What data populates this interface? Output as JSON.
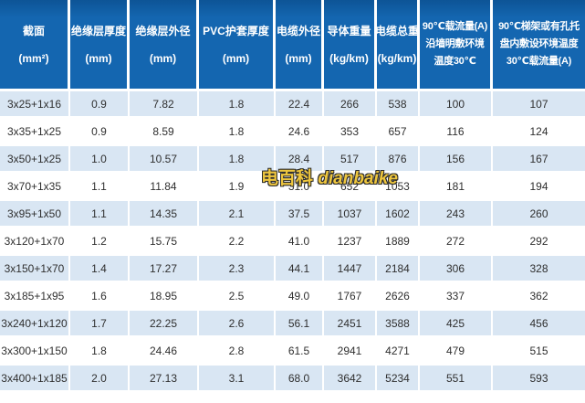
{
  "colors": {
    "header_bg": "#1466b0",
    "header_bg_dark": "#0d5496",
    "row_alt_bg": "#d9e6f3",
    "row_bg": "#ffffff",
    "grid_line": "#ffffff",
    "body_text": "#2f2f2f",
    "header_text": "#ffffff",
    "watermark_color": "#eec63e",
    "watermark_outline": "#2b2b2b"
  },
  "watermark": {
    "text_cn": "电百科",
    "text_en": "dianbaike"
  },
  "chart_data": {
    "type": "table",
    "title": "",
    "columns": [
      {
        "label": "截面 (mm²)",
        "lines": [
          "截面",
          "(mm²)"
        ]
      },
      {
        "label": "绝缘层厚度 (mm)",
        "lines": [
          "绝缘层厚度",
          "(mm)"
        ]
      },
      {
        "label": "绝缘层外径 (mm)",
        "lines": [
          "绝缘层外径",
          "(mm)"
        ]
      },
      {
        "label": "PVC护套厚度 (mm)",
        "lines": [
          "PVC护套厚度",
          "(mm)"
        ]
      },
      {
        "label": "电缆外径 (mm)",
        "lines": [
          "电缆外径",
          "(mm)"
        ]
      },
      {
        "label": "导体重量 (kg/km)",
        "lines": [
          "导体重量",
          "(kg/km)"
        ]
      },
      {
        "label": "电缆总重 (kg/km)",
        "lines": [
          "电缆总重",
          "(kg/km)"
        ]
      },
      {
        "label": "90℃载流量(A)沿墙明敷环境温度30℃",
        "lines": [
          "90℃载流量(A)",
          "沿墙明敷环境",
          "温度30℃"
        ]
      },
      {
        "label": "90℃梯架或有孔托盘内敷设环境温度30℃载流量(A)",
        "lines": [
          "90℃梯架或有孔托",
          "盘内敷设环境温度",
          "30℃载流量(A)"
        ]
      }
    ],
    "rows": [
      [
        "3x25+1x16",
        "0.9",
        "7.82",
        "1.8",
        "22.4",
        "266",
        "538",
        "100",
        "107"
      ],
      [
        "3x35+1x25",
        "0.9",
        "8.59",
        "1.8",
        "24.6",
        "353",
        "657",
        "116",
        "124"
      ],
      [
        "3x50+1x25",
        "1.0",
        "10.57",
        "1.8",
        "28.4",
        "517",
        "876",
        "156",
        "167"
      ],
      [
        "3x70+1x35",
        "1.1",
        "11.84",
        "1.9",
        "31.0",
        "652",
        "1053",
        "181",
        "194"
      ],
      [
        "3x95+1x50",
        "1.1",
        "14.35",
        "2.1",
        "37.5",
        "1037",
        "1602",
        "243",
        "260"
      ],
      [
        "3x120+1x70",
        "1.2",
        "15.75",
        "2.2",
        "41.0",
        "1237",
        "1889",
        "272",
        "292"
      ],
      [
        "3x150+1x70",
        "1.4",
        "17.27",
        "2.3",
        "44.1",
        "1447",
        "2184",
        "306",
        "328"
      ],
      [
        "3x185+1x95",
        "1.6",
        "18.95",
        "2.5",
        "49.0",
        "1767",
        "2626",
        "337",
        "362"
      ],
      [
        "3x240+1x120",
        "1.7",
        "22.25",
        "2.6",
        "56.1",
        "2451",
        "3588",
        "425",
        "456"
      ],
      [
        "3x300+1x150",
        "1.8",
        "24.46",
        "2.8",
        "61.5",
        "2941",
        "4271",
        "479",
        "515"
      ],
      [
        "3x400+1x185",
        "2.0",
        "27.13",
        "3.1",
        "68.0",
        "3642",
        "5234",
        "551",
        "593"
      ]
    ]
  }
}
